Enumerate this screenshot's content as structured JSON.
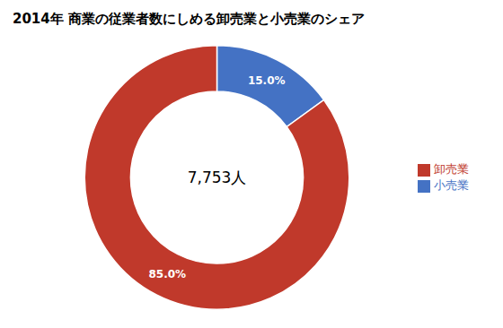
{
  "chart_data": {
    "type": "pie",
    "title": "2014年 商業の従業者数にしめる卸売業と小売業のシェア",
    "categories": [
      "小売業",
      "卸売業"
    ],
    "values": [
      15.0,
      85.0
    ],
    "value_labels": [
      "15.0%",
      "85.0%"
    ],
    "colors": [
      "#4472C4",
      "#C0392B"
    ],
    "annotation": "7,753人",
    "data_labels": true,
    "legend": "right"
  }
}
